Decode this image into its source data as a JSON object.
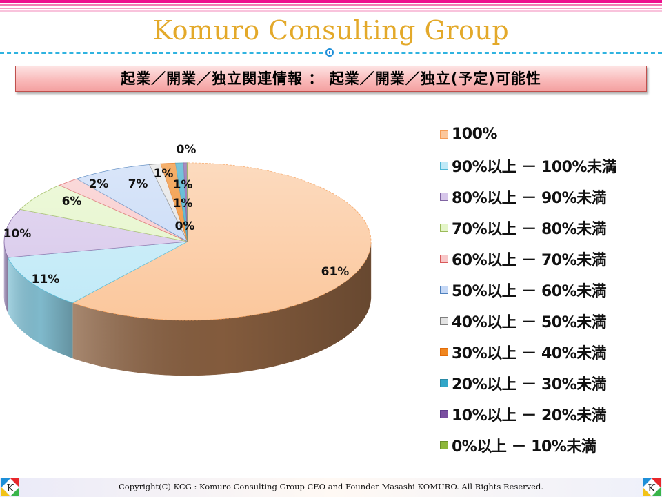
{
  "header": {
    "brand_title": "Komuro Consulting Group",
    "stripe_colors": [
      "#ee0f8e",
      "#f27db4",
      "#f59ac4",
      "#f9c3dc"
    ]
  },
  "banner": {
    "title": "起業／開業／独立関連情報 ： 起業／開業／独立(予定)可能性"
  },
  "footer": {
    "copyright": "Copyright(C) KCG : Komuro Consulting Group  CEO and Founder  Masashi KOMURO. All Rights Reserved.",
    "logo_letter": "K"
  },
  "chart_data": {
    "type": "pie",
    "style": "3d",
    "title": "起業／開業／独立(予定)可能性",
    "legend_position": "right",
    "start_angle": "12 o'clock, clockwise",
    "categories": [
      "100%",
      "90%以上 － 100%未満",
      "80%以上 － 90%未満",
      "70%以上 － 80%未満",
      "60%以上 － 70%未満",
      "50%以上 － 60%未満",
      "40%以上 － 50%未満",
      "30%以上 － 40%未満",
      "20%以上 － 30%未満",
      "10%以上 － 20%未満",
      "0%以上 － 10%未満"
    ],
    "values": [
      61,
      11,
      10,
      6,
      2,
      7,
      1,
      1,
      1,
      0,
      0
    ],
    "data_labels": [
      "61%",
      "11%",
      "10%",
      "6%",
      "2%",
      "7%",
      "1%",
      "1%",
      "1%",
      "0%",
      "0%"
    ],
    "slice_weights": [
      61,
      11,
      10,
      6,
      2,
      7,
      1,
      1.3,
      0.7,
      0.3,
      0.05
    ],
    "colors": [
      "#fbc79c",
      "#bfe9f7",
      "#d6c6ea",
      "#e4f5c8",
      "#f8c7c8",
      "#c5d8f6",
      "#e3e3e3",
      "#f0861f",
      "#31a6c8",
      "#7a4fa0",
      "#8db63a"
    ],
    "side_colors": [
      "#8a6040",
      "#86c3d6",
      "#a898c0",
      "#b9cf98",
      "#d0a0a0",
      "#98acd0",
      "#b0b0b0",
      "#b86010",
      "#1f7a96",
      "#553378",
      "#5e8125"
    ],
    "border_colors": [
      "#f59d56",
      "#4fb8d6",
      "#8064a2",
      "#9bbb59",
      "#d9595a",
      "#4f81bd",
      "#7f7f7f",
      "#e36c09",
      "#2a8aa6",
      "#5f3c8a",
      "#6b8f2a"
    ]
  }
}
